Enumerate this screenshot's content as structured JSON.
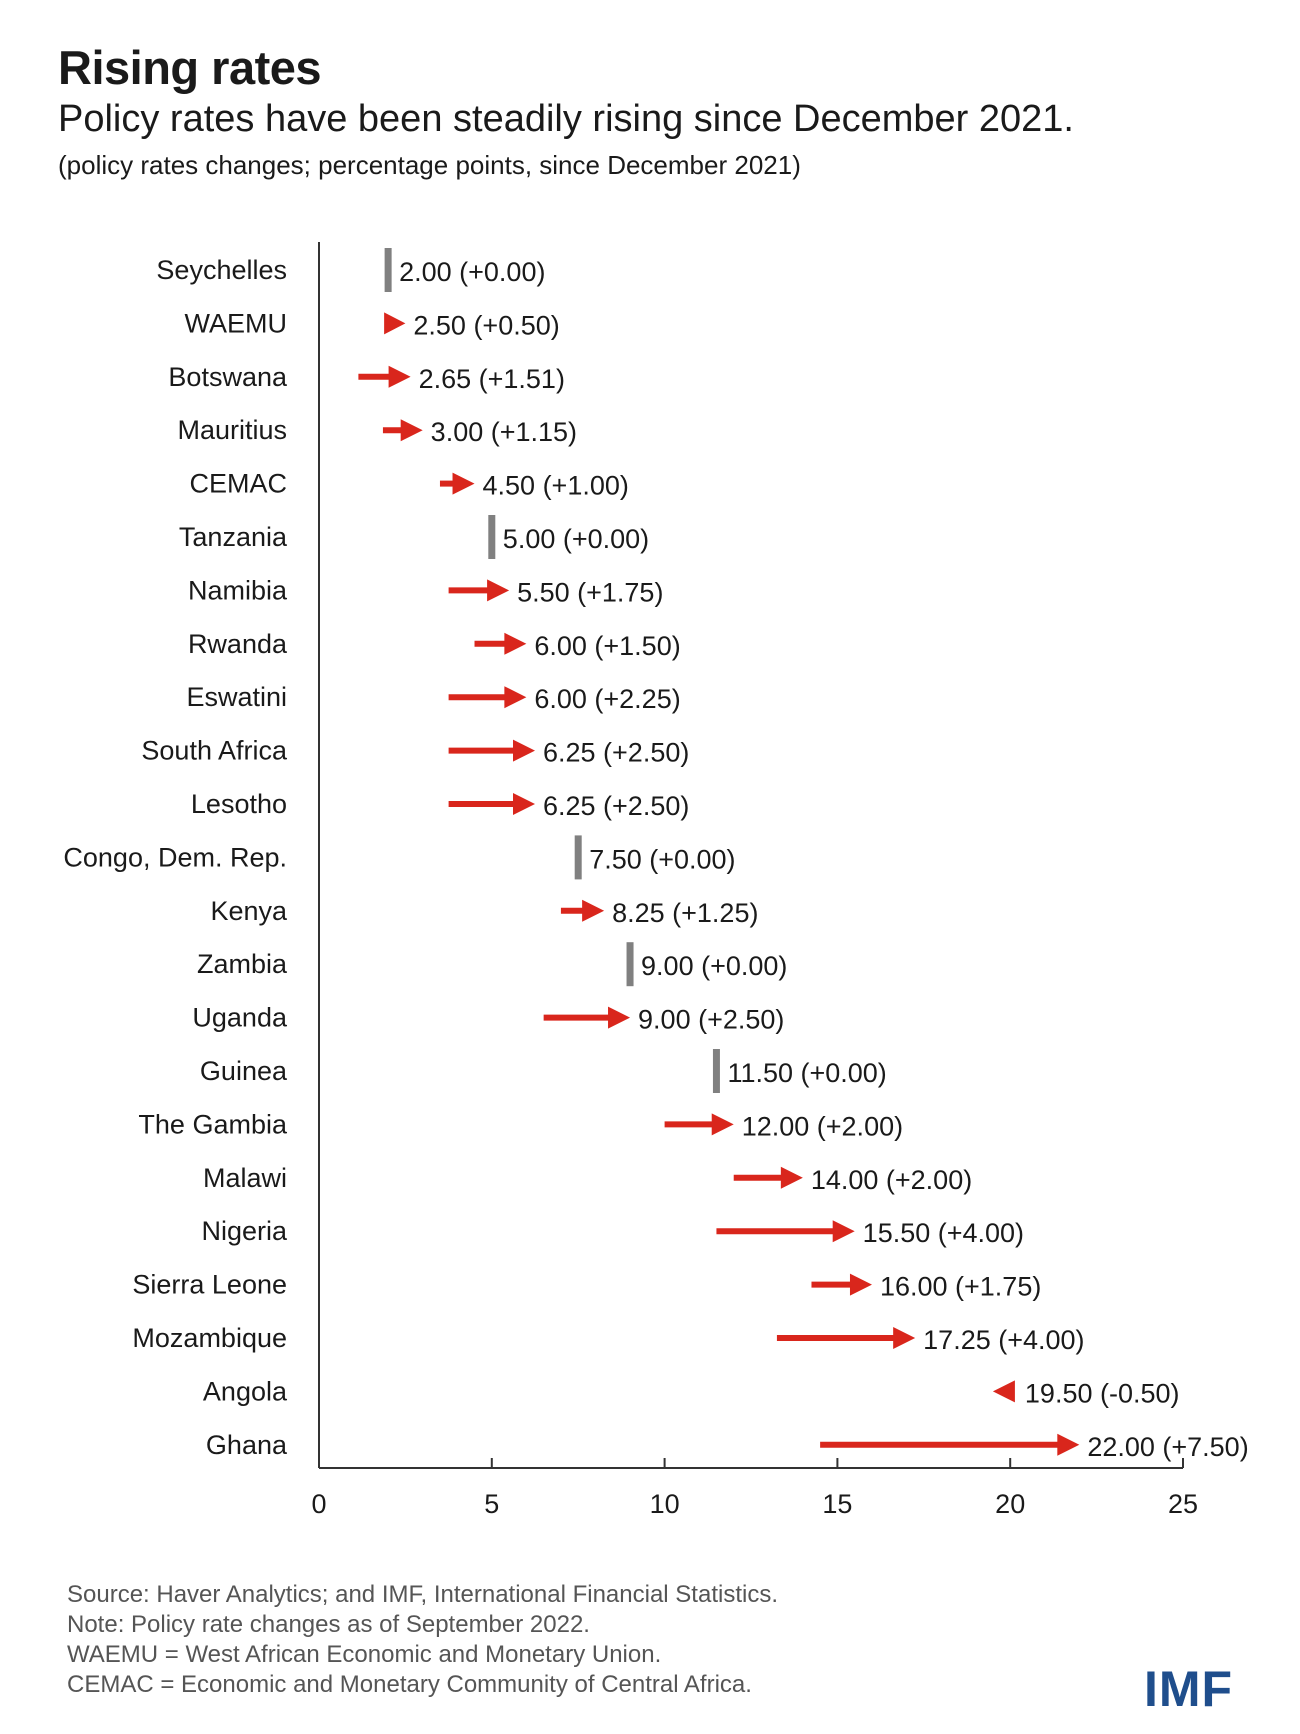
{
  "title": "Rising rates",
  "subtitle": "Policy rates have been steadily rising since December 2021.",
  "unit_note": "(policy rates changes; percentage points, since December 2021)",
  "footnotes": [
    "Source: Haver Analytics; and IMF, International Financial Statistics.",
    "Note: Policy rate changes as of September 2022.",
    "WAEMU = West African Economic and Monetary Union.",
    "CEMAC = Economic and Monetary Community of Central Africa."
  ],
  "logo_text": "IMF",
  "colors": {
    "increase": "#d9261c",
    "nochange": "#808080",
    "decrease": "#d9261c",
    "axis": "#333333",
    "logo": "#1f4e8c"
  },
  "chart_data": {
    "type": "arrow",
    "xlim": [
      0,
      25
    ],
    "xticks": [
      0,
      5,
      10,
      15,
      20,
      25
    ],
    "grid": false,
    "categories": [
      "Seychelles",
      "WAEMU",
      "Botswana",
      "Mauritius",
      "CEMAC",
      "Tanzania",
      "Namibia",
      "Rwanda",
      "Eswatini",
      "South Africa",
      "Lesotho",
      "Congo, Dem. Rep.",
      "Kenya",
      "Zambia",
      "Uganda",
      "Guinea",
      "The Gambia",
      "Malawi",
      "Nigeria",
      "Sierra Leone",
      "Mozambique",
      "Angola",
      "Ghana"
    ],
    "series": [
      {
        "start": [
          2.0,
          2.0,
          1.14,
          1.85,
          3.5,
          5.0,
          3.75,
          4.5,
          3.75,
          3.75,
          3.75,
          7.5,
          7.0,
          9.0,
          6.5,
          11.5,
          10.0,
          12.0,
          11.5,
          14.25,
          13.25,
          20.0,
          14.5
        ]
      },
      {
        "end": [
          2.0,
          2.5,
          2.65,
          3.0,
          4.5,
          5.0,
          5.5,
          6.0,
          6.0,
          6.25,
          6.25,
          7.5,
          8.25,
          9.0,
          9.0,
          11.5,
          12.0,
          14.0,
          15.5,
          16.0,
          17.25,
          19.5,
          22.0
        ]
      },
      {
        "labels": [
          "2.00 (+0.00)",
          "2.50 (+0.50)",
          "2.65 (+1.51)",
          "3.00 (+1.15)",
          "4.50 (+1.00)",
          "5.00 (+0.00)",
          "5.50 (+1.75)",
          "6.00 (+1.50)",
          "6.00 (+2.25)",
          "6.25 (+2.50)",
          "6.25 (+2.50)",
          "7.50 (+0.00)",
          "8.25 (+1.25)",
          "9.00 (+0.00)",
          "9.00 (+2.50)",
          "11.50 (+0.00)",
          "12.00 (+2.00)",
          "14.00 (+2.00)",
          "15.50 (+4.00)",
          "16.00 (+1.75)",
          "17.25 (+4.00)",
          "19.50 (-0.50)",
          "22.00 (+7.50)"
        ]
      }
    ]
  }
}
